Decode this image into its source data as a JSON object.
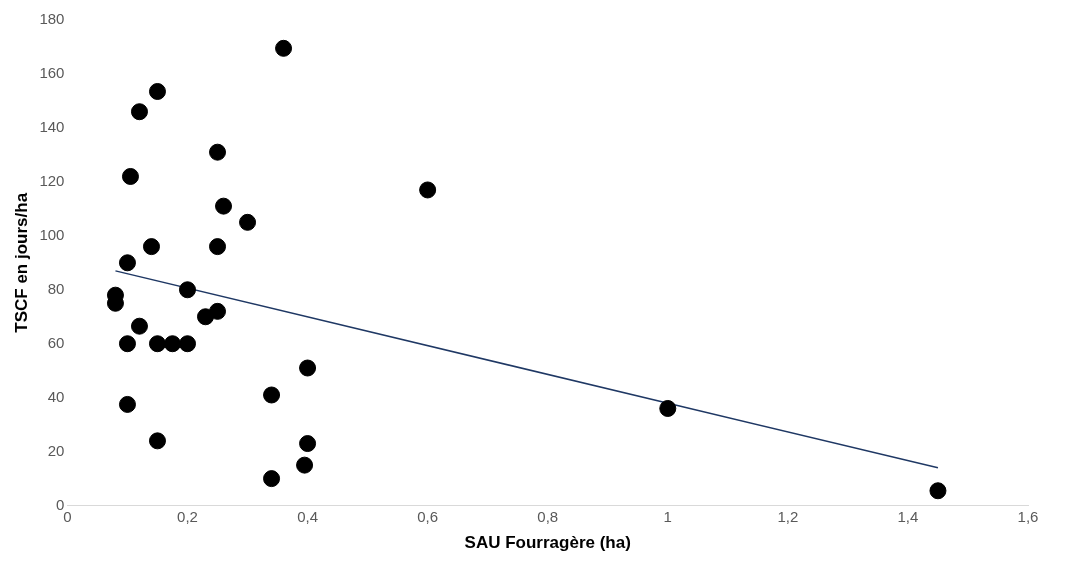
{
  "chart_data": {
    "type": "scatter",
    "xlabel": "SAU Fourragère (ha)",
    "ylabel": "TSCF en jours/ha",
    "xlim": [
      0,
      1.6
    ],
    "xticks": [
      0,
      {
        "value": 0.2,
        "label": "0,2"
      },
      {
        "value": 0.4,
        "label": "0,4"
      },
      {
        "value": 0.6,
        "label": "0,6"
      },
      {
        "value": 0.8,
        "label": "0,8"
      },
      1,
      {
        "value": 1.2,
        "label": "1,2"
      },
      {
        "value": 1.4,
        "label": "1,4"
      },
      {
        "value": 1.6,
        "label": "1,6"
      }
    ],
    "ylim": [
      0,
      180
    ],
    "yticks": [
      0,
      20,
      40,
      60,
      80,
      100,
      120,
      140,
      160,
      180
    ],
    "grid": false,
    "legend": false,
    "series": [
      {
        "type": "scatter",
        "marker": "circle",
        "color": "#000000",
        "x": [
          0.08,
          0.08,
          0.1,
          0.1,
          0.1,
          0.105,
          0.12,
          0.12,
          0.14,
          0.15,
          0.15,
          0.15,
          0.175,
          0.2,
          0.2,
          0.23,
          0.25,
          0.25,
          0.25,
          0.26,
          0.3,
          0.34,
          0.34,
          0.36,
          0.395,
          0.4,
          0.4,
          0.6,
          1,
          1.45
        ],
        "values": [
          78,
          75,
          90,
          60,
          37.5,
          122,
          146,
          66.5,
          96,
          153.5,
          60,
          24,
          60,
          80,
          60,
          70,
          131,
          96,
          72,
          111,
          105,
          41,
          10,
          169.5,
          15,
          51,
          23,
          117,
          36,
          5.5
        ]
      },
      {
        "type": "line",
        "marker": "none",
        "color": "#1f3864",
        "x": [
          0.08,
          1.45
        ],
        "values": [
          87,
          14
        ]
      }
    ]
  }
}
